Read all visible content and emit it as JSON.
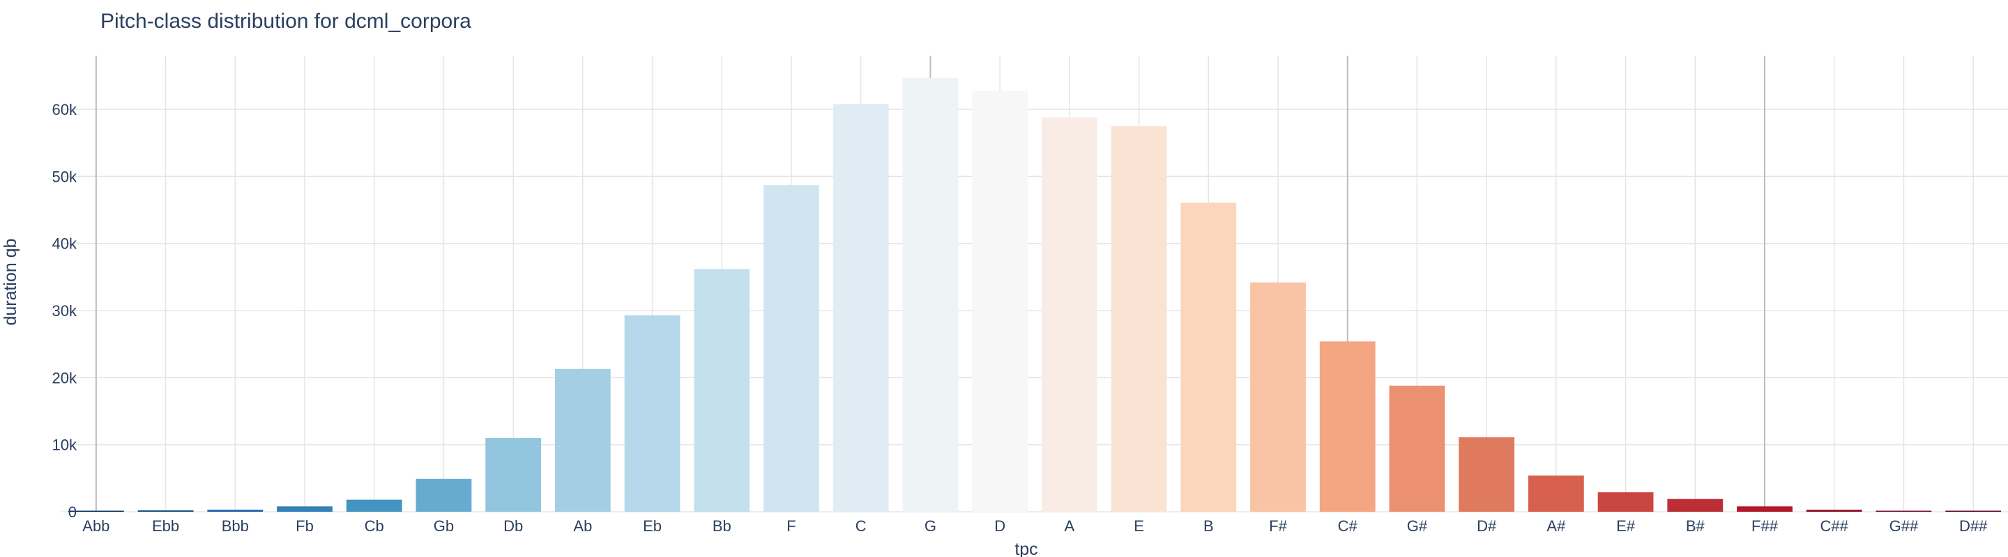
{
  "chart_data": {
    "type": "bar",
    "title": "Pitch-class distribution for dcml_corpora",
    "xlabel": "tpc",
    "ylabel": "duration qb",
    "categories": [
      "Abb",
      "Ebb",
      "Bbb",
      "Fb",
      "Cb",
      "Gb",
      "Db",
      "Ab",
      "Eb",
      "Bb",
      "F",
      "C",
      "G",
      "D",
      "A",
      "E",
      "B",
      "F#",
      "C#",
      "G#",
      "D#",
      "A#",
      "E#",
      "B#",
      "F##",
      "C##",
      "G##",
      "D##"
    ],
    "values": [
      30,
      200,
      300,
      800,
      1800,
      4900,
      11000,
      21300,
      29300,
      36200,
      48700,
      60800,
      64700,
      62700,
      58800,
      57500,
      46100,
      34200,
      25400,
      18800,
      11100,
      5400,
      2900,
      1900,
      800,
      300,
      120,
      40
    ],
    "colors": [
      "#053061",
      "#134c88",
      "#2166ac",
      "#3480b9",
      "#4393c3",
      "#68abd0",
      "#92c5de",
      "#a4cee4",
      "#b5d7e9",
      "#c5e0ed",
      "#d1e5f0",
      "#e0ecf3",
      "#eef3f6",
      "#f7f7f7",
      "#f9ece5",
      "#fbe3d4",
      "#fbd6bd",
      "#f9c4a5",
      "#f4a582",
      "#eb9070",
      "#e07a5f",
      "#d6604d",
      "#c94741",
      "#bb2e36",
      "#b2182b",
      "#91112b",
      "#7a0c28",
      "#67001f"
    ],
    "yticks": [
      0,
      10000,
      20000,
      30000,
      40000,
      50000,
      60000
    ],
    "ytick_labels": [
      "0",
      "10k",
      "20k",
      "30k",
      "40k",
      "50k",
      "60k"
    ],
    "ylim": [
      0,
      68000
    ],
    "grid": true,
    "highlighted_categories": [
      "Abb",
      "G",
      "C#",
      "F##"
    ]
  }
}
